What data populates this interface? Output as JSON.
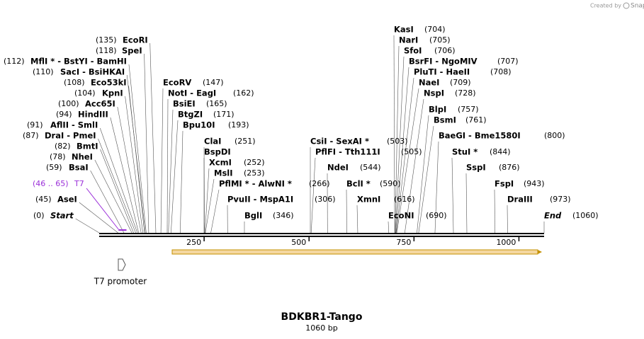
{
  "header": {
    "credit": "Created by",
    "brand": "SnapGene"
  },
  "sites": [
    {
      "name": "EcoRI",
      "position": "(135)"
    },
    {
      "name": "SpeI",
      "position": "(118)"
    },
    {
      "name": "MflI *  -  BstYI  -  BamHI",
      "position": "(112)"
    },
    {
      "name": "SacI  -  BsiHKAI",
      "position": "(110)"
    },
    {
      "name": "Eco53kI",
      "position": "(108)"
    },
    {
      "name": "KpnI",
      "position": "(104)"
    },
    {
      "name": "Acc65I",
      "position": "(100)"
    },
    {
      "name": "HindIII",
      "position": "(94)"
    },
    {
      "name": "AflII  -  SmlI",
      "position": "(91)"
    },
    {
      "name": "DraI  -  PmeI",
      "position": "(87)"
    },
    {
      "name": "BmtI",
      "position": "(82)"
    },
    {
      "name": "NheI",
      "position": "(78)"
    },
    {
      "name": "BsaI",
      "position": "(59)"
    },
    {
      "name": "AseI",
      "position": "(45)"
    },
    {
      "name": "Start",
      "position": "(0)"
    },
    {
      "name": "EcoRV",
      "position": "(147)"
    },
    {
      "name": "NotI  -  EagI",
      "position": "(162)"
    },
    {
      "name": "BsiEI",
      "position": "(165)"
    },
    {
      "name": "BtgZI",
      "position": "(171)"
    },
    {
      "name": "Bpu10I",
      "position": "(193)"
    },
    {
      "name": "ClaI",
      "position": "(251)"
    },
    {
      "name": "BspDI"
    },
    {
      "name": "XcmI",
      "position": "(252)"
    },
    {
      "name": "MslI",
      "position": "(253)"
    },
    {
      "name": "PflMI *  -  AlwNI *",
      "position": "(266)"
    },
    {
      "name": "PvuII  -  MspA1I",
      "position": "(306)"
    },
    {
      "name": "BglI",
      "position": "(346)"
    },
    {
      "name": "CsiI  -  SexAI *",
      "position": "(503)"
    },
    {
      "name": "PflFI  -  Tth111I",
      "position": "(505)"
    },
    {
      "name": "NdeI",
      "position": "(544)"
    },
    {
      "name": "BclI *",
      "position": "(590)"
    },
    {
      "name": "XmnI",
      "position": "(616)"
    },
    {
      "name": "EcoNI",
      "position": "(690)"
    },
    {
      "name": "KasI",
      "position": "(704)"
    },
    {
      "name": "NarI",
      "position": "(705)"
    },
    {
      "name": "SfoI",
      "position": "(706)"
    },
    {
      "name": "BsrFI  -  NgoMIV",
      "position": "(707)"
    },
    {
      "name": "PluTI  -  HaeII",
      "position": "(708)"
    },
    {
      "name": "NaeI",
      "position": "(709)"
    },
    {
      "name": "NspI",
      "position": "(728)"
    },
    {
      "name": "BlpI",
      "position": "(757)"
    },
    {
      "name": "BsmI",
      "position": "(761)"
    },
    {
      "name": "BaeGI  -  Bme1580I",
      "position": "(800)"
    },
    {
      "name": "StuI *",
      "position": "(844)"
    },
    {
      "name": "SspI",
      "position": "(876)"
    },
    {
      "name": "FspI",
      "position": "(943)"
    },
    {
      "name": "DraIII",
      "position": "(973)"
    },
    {
      "name": "End",
      "position": "(1060)"
    }
  ],
  "features": [
    {
      "name": "T7",
      "range": "(46 .. 65)"
    }
  ],
  "feature_labels": [
    "T7 promoter"
  ],
  "ruler": {
    "ticks": [
      250,
      500,
      750,
      1000
    ]
  },
  "map": {
    "title": "BDKBR1-Tango",
    "length": "1060 bp"
  }
}
